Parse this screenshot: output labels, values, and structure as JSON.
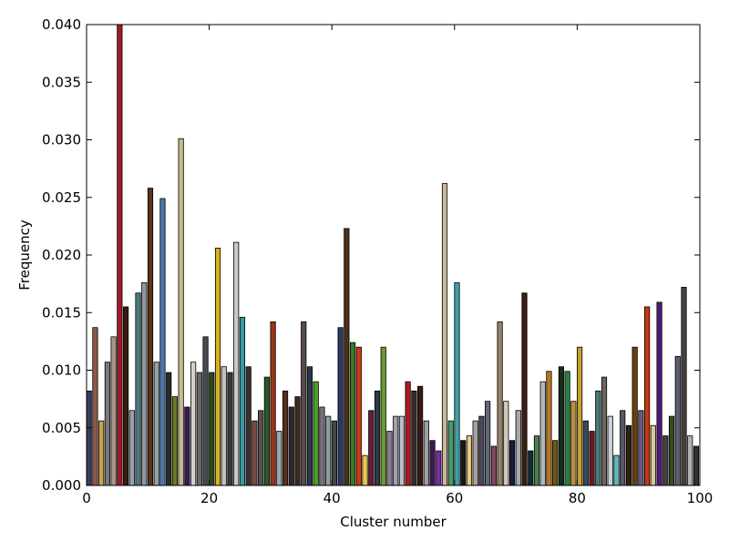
{
  "chart_data": {
    "type": "bar",
    "xlabel": "Cluster number",
    "ylabel": "Frequency",
    "xlim": [
      0,
      100
    ],
    "ylim": [
      0,
      0.04
    ],
    "x_ticks": [
      0,
      20,
      40,
      60,
      80,
      100
    ],
    "x_tick_labels": [
      "0",
      "20",
      "40",
      "60",
      "80",
      "100"
    ],
    "y_ticks": [
      0,
      0.005,
      0.01,
      0.015,
      0.02,
      0.025,
      0.03,
      0.035,
      0.04
    ],
    "y_tick_labels": [
      "0.000",
      "0.005",
      "0.010",
      "0.015",
      "0.020",
      "0.025",
      "0.030",
      "0.035",
      "0.040"
    ],
    "grid": false,
    "legend": "none",
    "bar_width": 0.8,
    "x": [
      0,
      1,
      2,
      3,
      4,
      5,
      6,
      7,
      8,
      9,
      10,
      11,
      12,
      13,
      14,
      15,
      16,
      17,
      18,
      19,
      20,
      21,
      22,
      23,
      24,
      25,
      26,
      27,
      28,
      29,
      30,
      31,
      32,
      33,
      34,
      35,
      36,
      37,
      38,
      39,
      40,
      41,
      42,
      43,
      44,
      45,
      46,
      47,
      48,
      49,
      50,
      51,
      52,
      53,
      54,
      55,
      56,
      57,
      58,
      59,
      60,
      61,
      62,
      63,
      64,
      65,
      66,
      67,
      68,
      69,
      70,
      71,
      72,
      73,
      74,
      75,
      76,
      77,
      78,
      79,
      80,
      81,
      82,
      83,
      84,
      85,
      86,
      87,
      88,
      89,
      90,
      91,
      92,
      93,
      94,
      95,
      96,
      97,
      98,
      99
    ],
    "values": [
      0.0082,
      0.0137,
      0.0056,
      0.0107,
      0.0129,
      0.04,
      0.0155,
      0.0065,
      0.0167,
      0.0176,
      0.0258,
      0.0107,
      0.0249,
      0.0098,
      0.0077,
      0.0301,
      0.0068,
      0.0107,
      0.0098,
      0.0129,
      0.0098,
      0.0206,
      0.0103,
      0.0098,
      0.0211,
      0.0146,
      0.0103,
      0.0056,
      0.0065,
      0.0094,
      0.0142,
      0.0047,
      0.0082,
      0.0068,
      0.0077,
      0.0142,
      0.0103,
      0.009,
      0.0068,
      0.006,
      0.0056,
      0.0137,
      0.0223,
      0.0124,
      0.012,
      0.0026,
      0.0065,
      0.0082,
      0.012,
      0.0047,
      0.006,
      0.006,
      0.009,
      0.0082,
      0.0086,
      0.0056,
      0.0039,
      0.003,
      0.0262,
      0.0056,
      0.0176,
      0.0039,
      0.0043,
      0.0056,
      0.006,
      0.0073,
      0.0034,
      0.0142,
      0.0073,
      0.0039,
      0.0065,
      0.0167,
      0.003,
      0.0043,
      0.009,
      0.0099,
      0.0039,
      0.0103,
      0.0099,
      0.0073,
      0.012,
      0.0056,
      0.0047,
      0.0082,
      0.0094,
      0.006,
      0.0026,
      0.0065,
      0.0052,
      0.012,
      0.0065,
      0.0155,
      0.0052,
      0.0159,
      0.0043,
      0.006,
      0.0112,
      0.0172,
      0.0043,
      0.0034
    ],
    "colors": [
      "#3a3a5c",
      "#8b5a4a",
      "#c8a050",
      "#7a7a7a",
      "#a89888",
      "#a0182a",
      "#3a1a10",
      "#9aa0a8",
      "#4a7a80",
      "#90989a",
      "#5a3418",
      "#90a0a8",
      "#4a78a8",
      "#2a2a2a",
      "#6a7a20",
      "#c8b890",
      "#3a1a58",
      "#d8d0c8",
      "#6a6a6a",
      "#4a4a50",
      "#2a4a1a",
      "#d8b020",
      "#c8c0b8",
      "#3a3a3a",
      "#c8c8c8",
      "#3a98a0",
      "#3a3030",
      "#7a4a40",
      "#5a5050",
      "#2a5a28",
      "#9a3418",
      "#9aa8b0",
      "#5a3020",
      "#2a2a30",
      "#3a2a18",
      "#5a4a48",
      "#2a3a48",
      "#48a028",
      "#787080",
      "#8aa0a0",
      "#404848",
      "#2a3a68",
      "#4a3018",
      "#3a7a28",
      "#d03818",
      "#e8c848",
      "#6a1a38",
      "#2a3a48",
      "#6a9a30",
      "#888090",
      "#a0a0b0",
      "#b8c0c8",
      "#b01820",
      "#3a2a2a",
      "#3a1a18",
      "#a0a0a0",
      "#3a1a50",
      "#7a2aa8",
      "#c8b898",
      "#4a9a68",
      "#3aa0a8",
      "#181818",
      "#e8c880",
      "#a8a0a0",
      "#484858",
      "#606878",
      "#804858",
      "#988068",
      "#d0c8b8",
      "#1a1a40",
      "#a8a8a8",
      "#3a2010",
      "#103030",
      "#4a8050",
      "#b0b8b8",
      "#b87820",
      "#6a5a10",
      "#1a2a20",
      "#2a8040",
      "#b89040",
      "#c8a030",
      "#3a4a58",
      "#6a1828",
      "#4a7878",
      "#6a6860",
      "#c8d0d8",
      "#60b8c0",
      "#58586a",
      "#302010",
      "#684008",
      "#685880",
      "#c83810",
      "#d8c898",
      "#501878",
      "#404040",
      "#3a4a20",
      "#5a6070",
      "#484040",
      "#b0b0b0",
      "#303038"
    ]
  }
}
